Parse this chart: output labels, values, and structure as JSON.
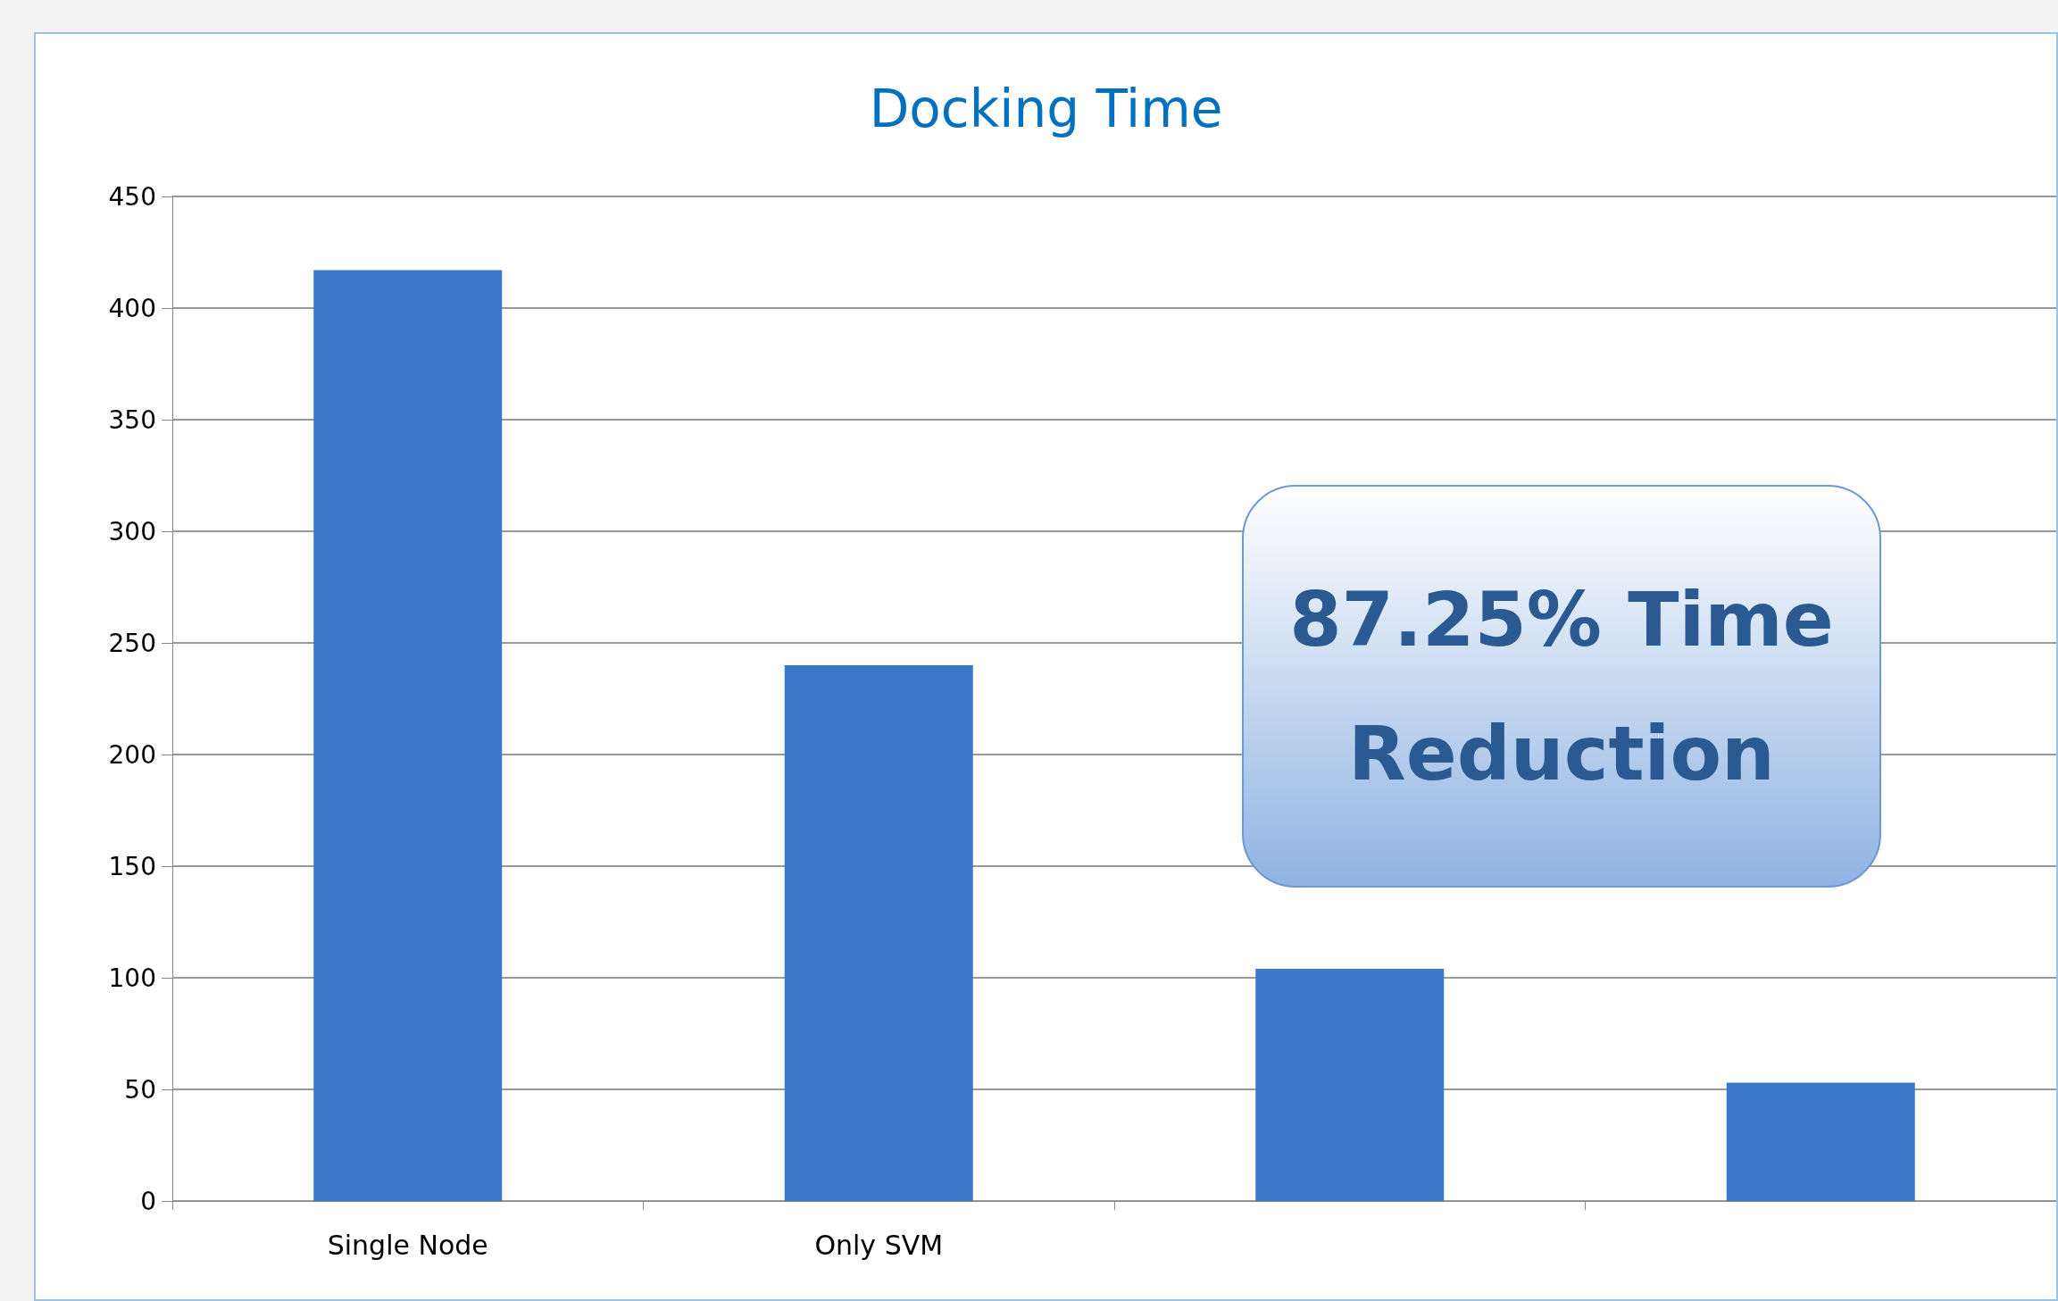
{
  "chart_data": {
    "type": "bar",
    "title": "Docking Time",
    "categories": [
      "Single Node",
      "Only SVM",
      null,
      null
    ],
    "values": [
      417,
      240,
      104,
      53
    ],
    "color": "#3b78c8",
    "ylim": [
      0,
      450
    ],
    "yticks": [
      0,
      50,
      100,
      150,
      200,
      250,
      300,
      350,
      400,
      450
    ],
    "grid": "y",
    "annotations": [
      "87.25% Time Reduction"
    ]
  }
}
